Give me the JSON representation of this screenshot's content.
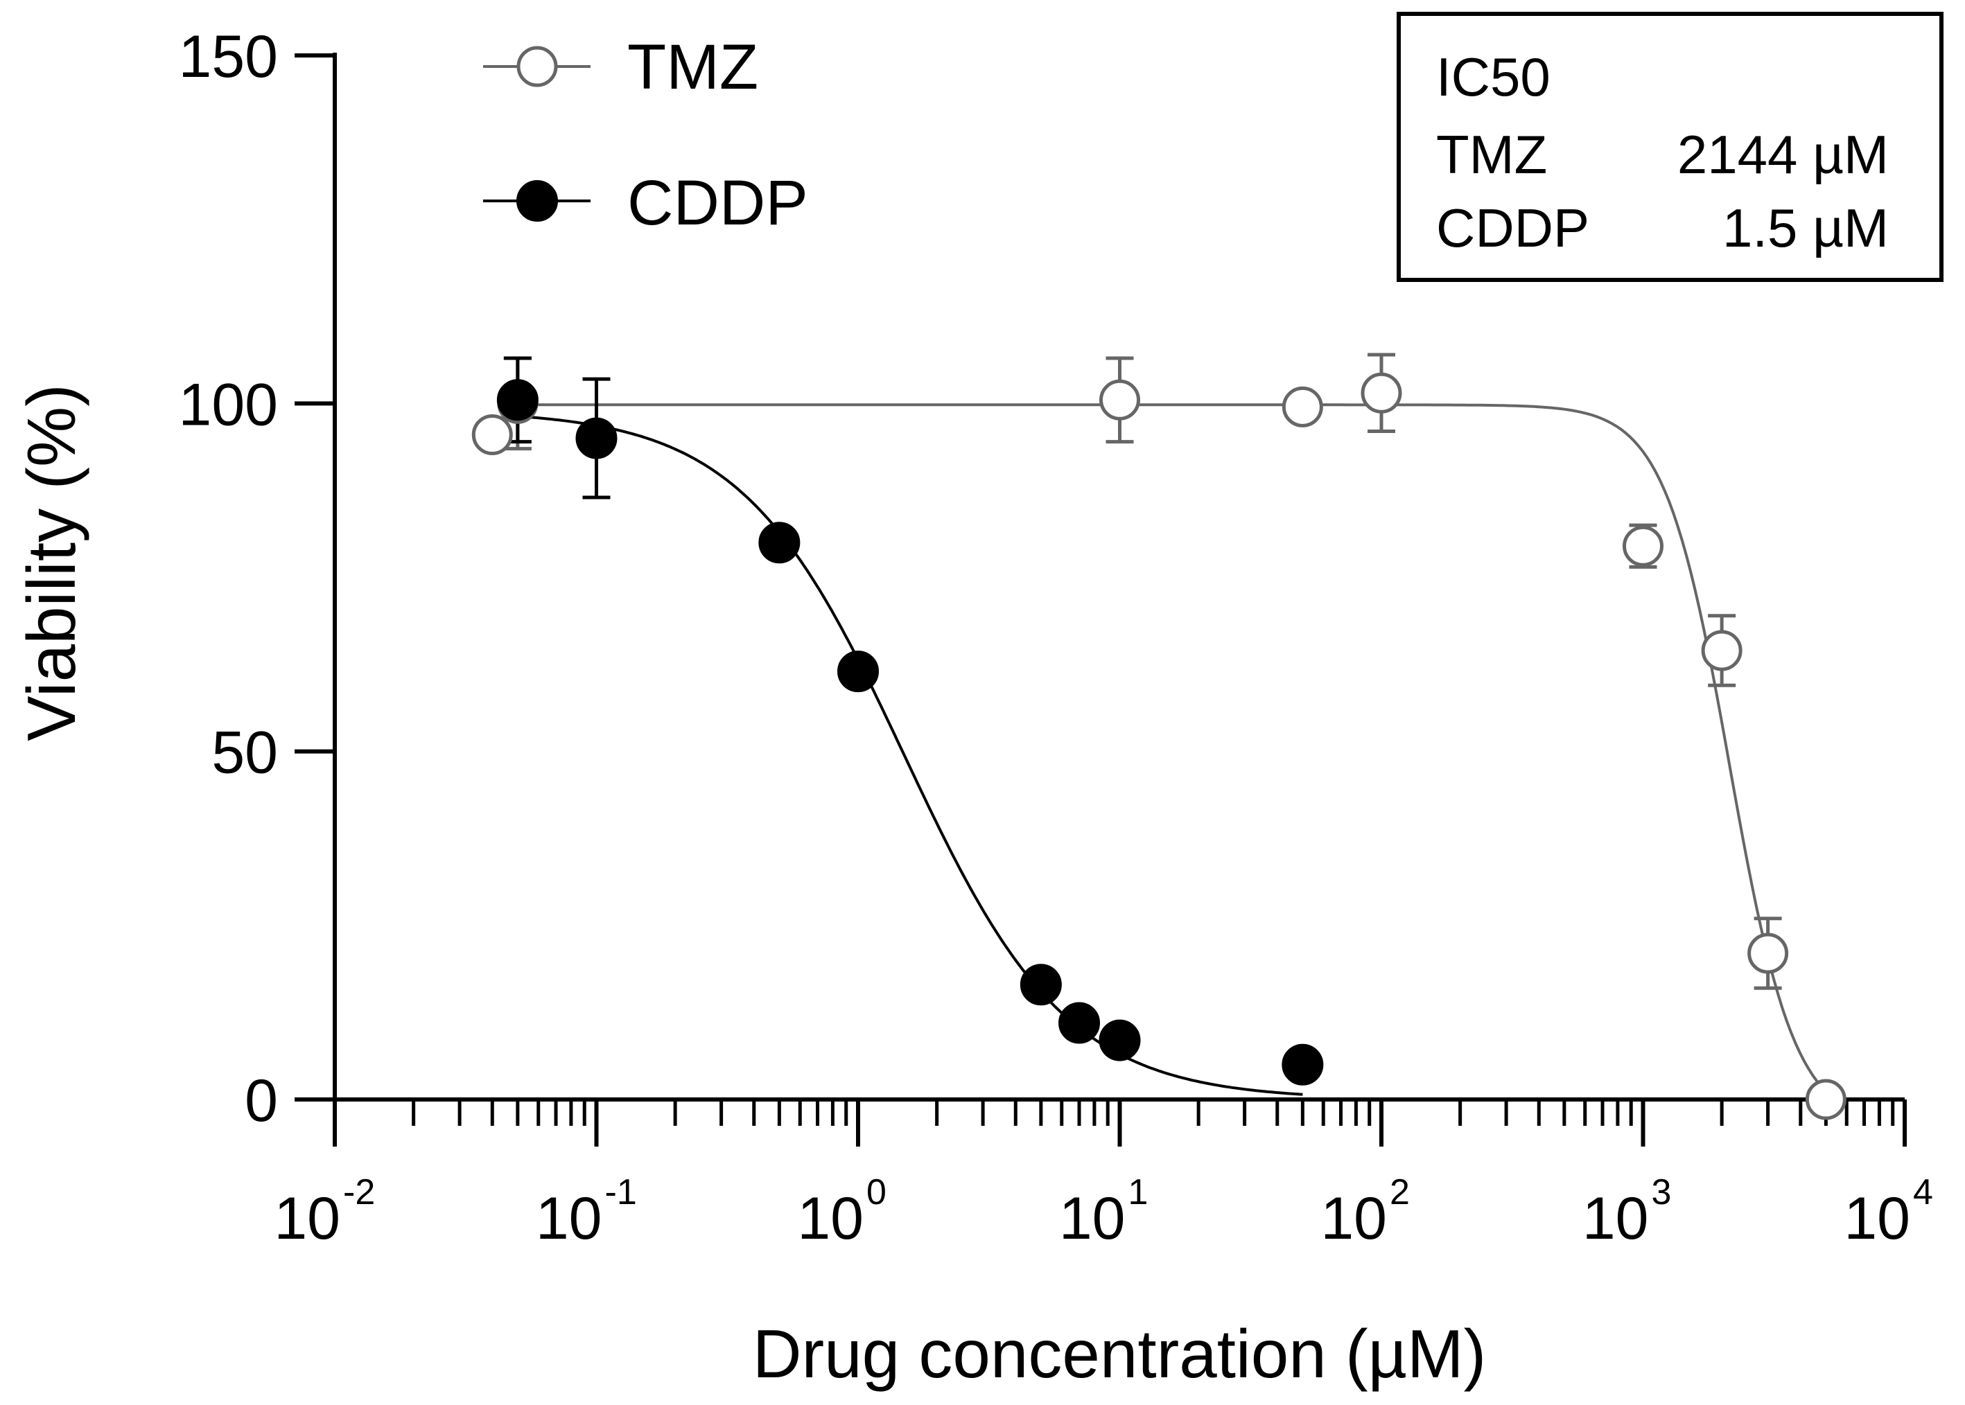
{
  "chart_data": {
    "type": "scatter",
    "title": "",
    "xlabel": "Drug concentration (µM)",
    "ylabel": "Viability (%)",
    "xscale": "log",
    "xlim": [
      0.01,
      10000
    ],
    "ylim": [
      0,
      150
    ],
    "y_ticks": [
      0,
      50,
      100,
      150
    ],
    "x_ticks": [
      {
        "base": "10",
        "exp": "-2",
        "value": 0.01
      },
      {
        "base": "10",
        "exp": "-1",
        "value": 0.1
      },
      {
        "base": "10",
        "exp": "0",
        "value": 1
      },
      {
        "base": "10",
        "exp": "1",
        "value": 10
      },
      {
        "base": "10",
        "exp": "2",
        "value": 100
      },
      {
        "base": "10",
        "exp": "3",
        "value": 1000
      },
      {
        "base": "10",
        "exp": "4",
        "value": 10000
      }
    ],
    "legend_position": "top-left",
    "series": [
      {
        "name": "TMZ",
        "marker": "open-circle",
        "color": "#666666",
        "points": [
          {
            "x": 0.04,
            "y": 95.5,
            "err": 0
          },
          {
            "x": 0.05,
            "y": 100.0,
            "err": 6.5
          },
          {
            "x": 10,
            "y": 100.5,
            "err": 6
          },
          {
            "x": 50,
            "y": 99.5,
            "err": 0
          },
          {
            "x": 100,
            "y": 101.5,
            "err": 5.5
          },
          {
            "x": 1000,
            "y": 79.5,
            "err": 3
          },
          {
            "x": 2000,
            "y": 64.5,
            "err": 5
          },
          {
            "x": 3000,
            "y": 21.0,
            "err": 5
          },
          {
            "x": 5000,
            "y": 0,
            "err": 0
          }
        ],
        "fit": {
          "top": 99.8,
          "bottom": -4,
          "ic50": 2144,
          "hill": 3.5,
          "xmin": 0.05,
          "xmax": 5000
        }
      },
      {
        "name": "CDDP",
        "marker": "filled-circle",
        "color": "#000000",
        "points": [
          {
            "x": 0.05,
            "y": 100.5,
            "err": 6
          },
          {
            "x": 0.1,
            "y": 95.0,
            "err": 8.5
          },
          {
            "x": 0.5,
            "y": 80.0,
            "err": 0
          },
          {
            "x": 1,
            "y": 61.5,
            "err": 0
          },
          {
            "x": 5,
            "y": 16.5,
            "err": 0
          },
          {
            "x": 7,
            "y": 11.0,
            "err": 0
          },
          {
            "x": 10,
            "y": 8.5,
            "err": 0
          },
          {
            "x": 50,
            "y": 5.0,
            "err": 0
          }
        ],
        "fit": {
          "top": 99,
          "bottom": 0,
          "ic50": 1.5,
          "hill": 1.4,
          "xmin": 0.05,
          "xmax": 50
        }
      }
    ],
    "legend": [
      {
        "label": "TMZ",
        "marker": "open-circle"
      },
      {
        "label": "CDDP",
        "marker": "filled-circle"
      }
    ],
    "annotation": {
      "title": "IC50",
      "rows": [
        {
          "drug": "TMZ",
          "value": "2144 µM"
        },
        {
          "drug": "CDDP",
          "value": "1.5 µM"
        }
      ]
    }
  }
}
